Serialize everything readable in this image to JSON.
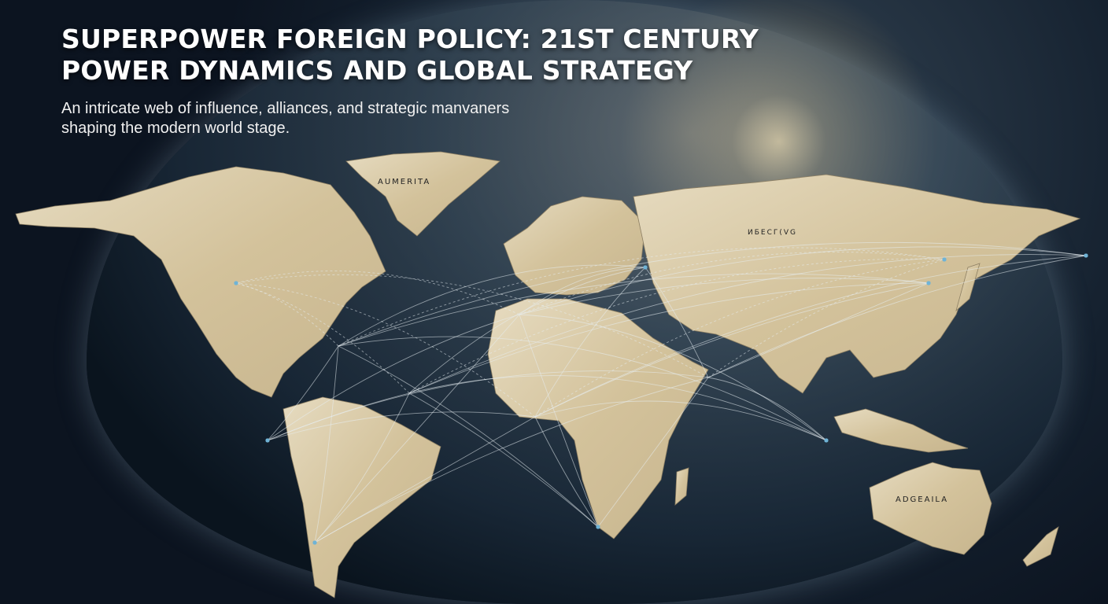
{
  "header": {
    "title_line1": "SUPERPOWER FOREIGN POLICY: 21ST CENTURY",
    "title_line2": "POWER DYNAMICS AND GLOBAL STRATEGY",
    "subtitle": "An intricate web of influence, alliances, and strategic manvaners shaping the modern world stage."
  },
  "map": {
    "labels": {
      "greenland": "AUMERITA",
      "asia": "ИБЕСГ(VG",
      "australia": "ADGEAILA"
    },
    "colors": {
      "land": "#d9c9a6",
      "ocean": "#14202c",
      "routes": "#e8eef2",
      "markers_red": "#c0502a",
      "markers_blue": "#6fb3d6"
    }
  }
}
